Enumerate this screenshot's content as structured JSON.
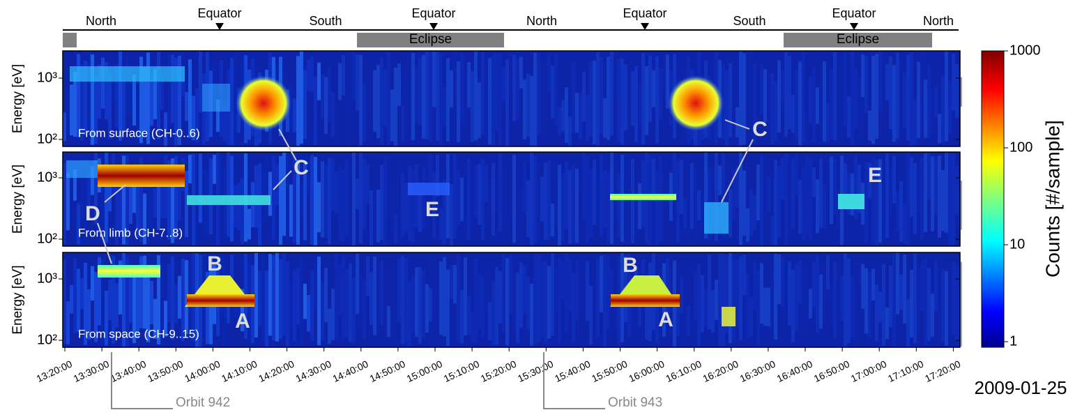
{
  "track": {
    "labels": [
      "North",
      "Equator",
      "South",
      "Equator",
      "North",
      "Equator",
      "South",
      "Equator",
      "North"
    ],
    "eclipse": [
      "Eclipse",
      "Eclipse"
    ]
  },
  "panels": [
    {
      "label": "From surface (CH-0..6)",
      "ylabel": "Energy [eV]",
      "yticks": [
        {
          "value": 100,
          "label": "10²"
        },
        {
          "value": 1000,
          "label": "10³"
        }
      ]
    },
    {
      "label": "From limb (CH-7..8)",
      "ylabel": "Energy [eV]",
      "yticks": [
        {
          "value": 100,
          "label": "10²"
        },
        {
          "value": 1000,
          "label": "10³"
        }
      ]
    },
    {
      "label": "From space (CH-9..15)",
      "ylabel": "Energy [eV]",
      "yticks": [
        {
          "value": 100,
          "label": "10²"
        },
        {
          "value": 1000,
          "label": "10³"
        }
      ]
    }
  ],
  "xticks": [
    "13:20:00",
    "13:30:00",
    "13:40:00",
    "13:50:00",
    "14:00:00",
    "14:10:00",
    "14:20:00",
    "14:30:00",
    "14:40:00",
    "14:50:00",
    "15:00:00",
    "15:10:00",
    "15:20:00",
    "15:30:00",
    "15:40:00",
    "15:50:00",
    "16:00:00",
    "16:10:00",
    "16:20:00",
    "16:30:00",
    "16:40:00",
    "16:50:00",
    "17:00:00",
    "17:10:00",
    "17:20:00"
  ],
  "annotations": [
    "C",
    "C",
    "D",
    "E",
    "E",
    "B",
    "A",
    "B",
    "A"
  ],
  "colorbar": {
    "label": "Counts [#/sample]",
    "ticks": [
      {
        "value": 1,
        "label": "1"
      },
      {
        "value": 10,
        "label": "10"
      },
      {
        "value": 100,
        "label": "100"
      },
      {
        "value": 1000,
        "label": "1000"
      }
    ]
  },
  "date": "2009-01-25",
  "orbits": [
    "Orbit 942",
    "Orbit 943"
  ]
}
